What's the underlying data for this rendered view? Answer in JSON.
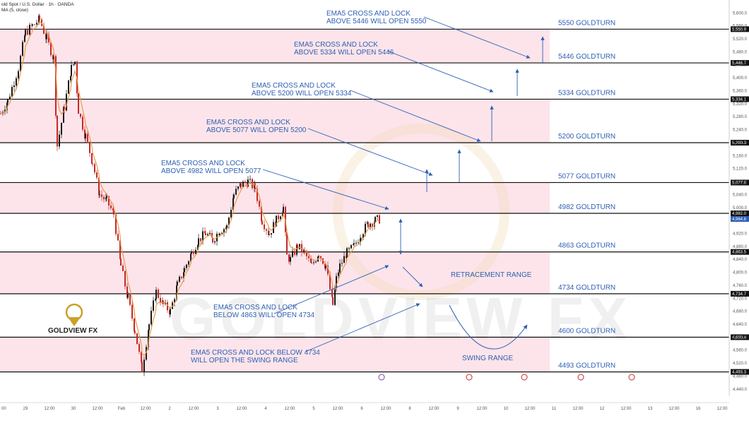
{
  "header": {
    "symbol": "old Spot / U.S. Dollar · 1h · OANDA",
    "indicator": "MA (5, close)"
  },
  "logo": {
    "text": "GOLDVIEW FX",
    "watermark": "GOLDVIEW FX"
  },
  "colors": {
    "zone_fill": "#fce4ea",
    "level_line": "#111111",
    "annotation": "#2f5fb3",
    "bull_candle": "#1a1a1a",
    "bear_candle": "#c62828",
    "ema": "#e89a4a"
  },
  "chart_data": {
    "type": "candlestick",
    "ylim": [
      4420,
      5640
    ],
    "y_ticks": [
      "5,600.0",
      "5,560.0",
      "5,520.0",
      "5,480.0",
      "5,440.0",
      "5,400.0",
      "5,360.0",
      "5,320.0",
      "5,280.0",
      "5,240.0",
      "5,200.0",
      "5,160.0",
      "5,120.0",
      "5,080.0",
      "5,040.0",
      "5,000.0",
      "4,960.0",
      "4,920.0",
      "4,880.0",
      "4,840.0",
      "4,800.0",
      "4,760.0",
      "4,720.0",
      "4,680.0",
      "4,640.0",
      "4,600.0",
      "4,560.0",
      "4,520.0",
      "4,480.0",
      "4,440.0"
    ],
    "x_ticks": [
      "00",
      "29",
      "12:00",
      "30",
      "12:00",
      "Feb",
      "12:00",
      "2",
      "12:00",
      "3",
      "12:00",
      "4",
      "12:00",
      "5",
      "12:00",
      "6",
      "12:00",
      "8",
      "12:00",
      "9",
      "12:00",
      "10",
      "12:00",
      "11",
      "12:00",
      "12",
      "12:00",
      "13",
      "12:00",
      "16",
      "12:00"
    ],
    "price_path": [
      [
        0,
        5290
      ],
      [
        10,
        5330
      ],
      [
        25,
        5430
      ],
      [
        35,
        5540
      ],
      [
        45,
        5560
      ],
      [
        55,
        5580
      ],
      [
        65,
        5520
      ],
      [
        75,
        5460
      ],
      [
        80,
        5190
      ],
      [
        90,
        5310
      ],
      [
        100,
        5430
      ],
      [
        105,
        5450
      ],
      [
        110,
        5300
      ],
      [
        120,
        5220
      ],
      [
        130,
        5140
      ],
      [
        140,
        5040
      ],
      [
        150,
        5020
      ],
      [
        160,
        4980
      ],
      [
        170,
        4820
      ],
      [
        180,
        4720
      ],
      [
        190,
        4620
      ],
      [
        200,
        4500
      ],
      [
        210,
        4640
      ],
      [
        220,
        4740
      ],
      [
        230,
        4700
      ],
      [
        240,
        4680
      ],
      [
        250,
        4760
      ],
      [
        260,
        4810
      ],
      [
        270,
        4860
      ],
      [
        280,
        4900
      ],
      [
        290,
        4920
      ],
      [
        300,
        4900
      ],
      [
        310,
        4930
      ],
      [
        320,
        4940
      ],
      [
        330,
        5040
      ],
      [
        340,
        5070
      ],
      [
        350,
        5080
      ],
      [
        360,
        5060
      ],
      [
        370,
        4960
      ],
      [
        380,
        4920
      ],
      [
        390,
        4960
      ],
      [
        400,
        5000
      ],
      [
        405,
        4850
      ],
      [
        410,
        4840
      ],
      [
        420,
        4880
      ],
      [
        430,
        4860
      ],
      [
        440,
        4820
      ],
      [
        450,
        4860
      ],
      [
        460,
        4820
      ],
      [
        470,
        4700
      ],
      [
        475,
        4780
      ],
      [
        480,
        4820
      ],
      [
        490,
        4860
      ],
      [
        500,
        4880
      ],
      [
        510,
        4920
      ],
      [
        520,
        4950
      ],
      [
        530,
        4960
      ],
      [
        538,
        4965
      ]
    ],
    "last_price": "4,964.6",
    "levels": [
      {
        "label": "5550 GOLDTURN",
        "value": 5550,
        "axis_label": "5,550.9"
      },
      {
        "label": "5446 GOLDTURN",
        "value": 5446,
        "axis_label": "5,446.7"
      },
      {
        "label": "5334 GOLDTURN",
        "value": 5334,
        "axis_label": "5,334.1"
      },
      {
        "label": "5200 GOLDTURN",
        "value": 5200,
        "axis_label": "5,200.3"
      },
      {
        "label": "5077 GOLDTURN",
        "value": 5077,
        "axis_label": "5,077.6"
      },
      {
        "label": "4982 GOLDTURN",
        "value": 4982,
        "axis_label": "4,982.0"
      },
      {
        "label": "4863 GOLDTURN",
        "value": 4863,
        "axis_label": "4,863.5"
      },
      {
        "label": "4734 GOLDTURN",
        "value": 4734,
        "axis_label": "4,734.7"
      },
      {
        "label": "4600 GOLDTURN",
        "value": 4600,
        "axis_label": "4,600.4"
      },
      {
        "label": "4493 GOLDTURN",
        "value": 4493,
        "axis_label": "4,493.3"
      }
    ],
    "zones": [
      [
        5446,
        5550
      ],
      [
        5200,
        5334
      ],
      [
        4982,
        5077
      ],
      [
        4734,
        4863
      ],
      [
        4493,
        4600
      ]
    ],
    "annotations": [
      {
        "line1": "EMA5 CROSS AND LOCK",
        "line2": "ABOVE 5446 WILL OPEN 5550"
      },
      {
        "line1": "EMA5 CROSS AND LOCK",
        "line2": "ABOVE 5334 WILL OPEN 5446"
      },
      {
        "line1": "EMA5 CROSS AND LOCK",
        "line2": "ABOVE 5200 WILL OPEN 5334"
      },
      {
        "line1": "EMA5 CROSS AND LOCK",
        "line2": "ABOVE 5077 WILL OPEN 5200"
      },
      {
        "line1": "EMA5 CROSS AND LOCK",
        "line2": "ABOVE 4982 WILL OPEN 5077"
      },
      {
        "line1": "EMA5 CROSS AND LOCK",
        "line2": "BELOW 4863 WILL OPEN 4734"
      },
      {
        "line1": "EMA5 CROSS AND LOCK BELOW 4734",
        "line2": "WILL OPEN THE SWING RANGE"
      }
    ],
    "range_labels": {
      "retracement": "RETRACEMENT RANGE",
      "swing": "SWING RANGE"
    }
  }
}
